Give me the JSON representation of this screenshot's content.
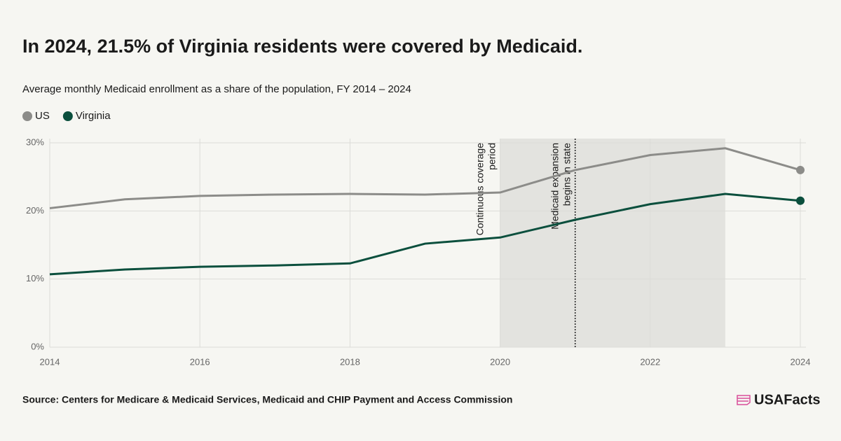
{
  "chart_data": {
    "type": "line",
    "title": "In 2024, 21.5% of Virginia residents were covered by Medicaid.",
    "subtitle": "Average monthly Medicaid enrollment as a share of the population, FY 2014 – 2024",
    "x": [
      2014,
      2015,
      2016,
      2017,
      2018,
      2019,
      2020,
      2021,
      2022,
      2023,
      2024
    ],
    "series": [
      {
        "name": "US",
        "color": "#8c8c89",
        "values": [
          20.4,
          21.7,
          22.2,
          22.4,
          22.5,
          22.4,
          22.7,
          26.0,
          28.2,
          29.2,
          26.0
        ]
      },
      {
        "name": "Virginia",
        "color": "#0b4f3d",
        "values": [
          10.7,
          11.4,
          11.8,
          12.0,
          12.3,
          15.2,
          16.1,
          18.7,
          21.0,
          22.5,
          21.5
        ]
      }
    ],
    "xlim": [
      2014,
      2024
    ],
    "xticks": [
      2014,
      2016,
      2018,
      2020,
      2022,
      2024
    ],
    "ylim": [
      0,
      30
    ],
    "yticks": [
      {
        "value": 0,
        "label": "0%"
      },
      {
        "value": 10,
        "label": "10%"
      },
      {
        "value": 20,
        "label": "20%"
      },
      {
        "value": 30,
        "label": "30%"
      }
    ],
    "grid": true,
    "shaded_region": {
      "x": [
        2020,
        2023
      ],
      "label_lines": [
        "Continuous coverage",
        "period"
      ]
    },
    "vline": {
      "x": 2021,
      "label_lines": [
        "Medicaid expansion",
        "begins in state"
      ]
    },
    "source": "Source: Centers for Medicare & Medicaid Services, Medicaid and CHIP Payment and Access Commission",
    "brand": "USAFacts"
  }
}
